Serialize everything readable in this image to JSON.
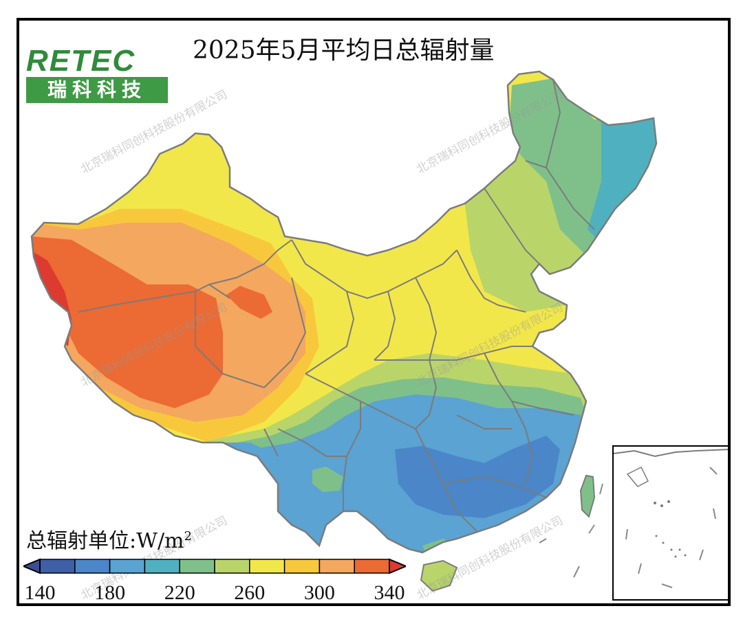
{
  "title": "2025年5月平均日总辐射量",
  "logo": {
    "brand": "RETEC",
    "name_cn": "瑞科科技"
  },
  "watermark": "北京瑞科同创科技股份有限公司",
  "legend": {
    "unit_label": "总辐射单位:W/m",
    "unit_sup": "2",
    "ticks": [
      "140",
      "180",
      "220",
      "260",
      "300",
      "340"
    ],
    "colors": [
      "#3f5fa6",
      "#4a86c8",
      "#5aa3d2",
      "#4fb1bf",
      "#7fc08a",
      "#b9d56a",
      "#f2e74a",
      "#f8c83c",
      "#f4a75e",
      "#ec6a33"
    ],
    "under_color": "#3b4f92",
    "over_color": "#dd3a30"
  },
  "colors": {
    "province_border": "#7b7b7b",
    "frame": "#000000"
  }
}
